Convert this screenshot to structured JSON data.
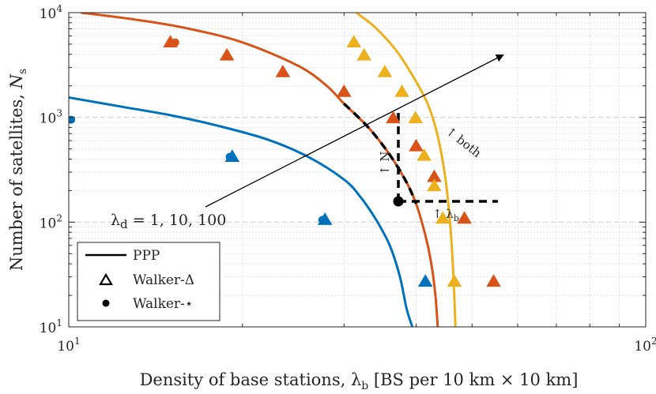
{
  "chart_data": {
    "type": "scatter",
    "title": "",
    "xscale": "log",
    "yscale": "log",
    "xlim": [
      10,
      100
    ],
    "ylim": [
      10,
      10000
    ],
    "xlabel_prefix": "Density of base stations, ",
    "xlabel_symbol": "λ",
    "xlabel_sub": "b",
    "xlabel_suffix": " [BS per 10 km × 10 km]",
    "ylabel_prefix": "Number of satellites, ",
    "ylabel_symbol": "N",
    "ylabel_sub": "s",
    "x_ticks": [
      {
        "value": 10,
        "base": "10",
        "exp": "1"
      },
      {
        "value": 100,
        "base": "10",
        "exp": "2"
      }
    ],
    "y_ticks": [
      {
        "value": 10,
        "base": "10",
        "exp": "1"
      },
      {
        "value": 100,
        "base": "10",
        "exp": "2"
      },
      {
        "value": 1000,
        "base": "10",
        "exp": "3"
      },
      {
        "value": 10000,
        "base": "10",
        "exp": "4"
      }
    ],
    "grid": true,
    "colors": {
      "blue": "#0072BD",
      "orange": "#D95319",
      "yellow": "#EDB120",
      "black": "#000000"
    },
    "series": [
      {
        "name": "PPP λd=1",
        "kind": "line",
        "color": "#0072BD",
        "points": [
          [
            10,
            1550
          ],
          [
            12.5,
            1250
          ],
          [
            15,
            1050
          ],
          [
            18,
            840
          ],
          [
            22,
            620
          ],
          [
            26,
            420
          ],
          [
            30,
            255
          ],
          [
            32,
            175
          ],
          [
            34,
            108
          ],
          [
            36,
            60
          ],
          [
            37.5,
            30
          ],
          [
            38.5,
            15
          ],
          [
            39.4,
            10
          ]
        ]
      },
      {
        "name": "PPP λd=10",
        "kind": "line",
        "color": "#D95319",
        "points": [
          [
            10.5,
            10000
          ],
          [
            13,
            8600
          ],
          [
            16,
            7100
          ],
          [
            20,
            5200
          ],
          [
            25,
            3100
          ],
          [
            28,
            2000
          ],
          [
            30,
            1350
          ],
          [
            33,
            810
          ],
          [
            36,
            440
          ],
          [
            38.5,
            240
          ],
          [
            40,
            150
          ],
          [
            41.5,
            75
          ],
          [
            42.5,
            40
          ],
          [
            43.2,
            20
          ],
          [
            43.6,
            10
          ]
        ]
      },
      {
        "name": "PPP λd=100",
        "kind": "line",
        "color": "#EDB120",
        "points": [
          [
            31.5,
            10000
          ],
          [
            34,
            7200
          ],
          [
            37,
            4300
          ],
          [
            40,
            2200
          ],
          [
            42,
            1300
          ],
          [
            43.5,
            700
          ],
          [
            44.8,
            300
          ],
          [
            45.6,
            130
          ],
          [
            46.1,
            60
          ],
          [
            46.5,
            25
          ],
          [
            46.8,
            10
          ]
        ]
      },
      {
        "name": "Walker-Δ λd=1",
        "kind": "triangle",
        "color": "#0072BD",
        "points": [
          [
            19.2,
            420
          ],
          [
            27.8,
            105
          ],
          [
            41.5,
            27
          ]
        ]
      },
      {
        "name": "Walker-★ λd=1",
        "kind": "dot",
        "color": "#0072BD",
        "points": [
          [
            10.1,
            950
          ],
          [
            19,
            420
          ],
          [
            27.5,
            105
          ]
        ]
      },
      {
        "name": "Walker-Δ λd=10",
        "kind": "triangle",
        "color": "#D95319",
        "points": [
          [
            15,
            5200
          ],
          [
            18.8,
            3900
          ],
          [
            23.5,
            2700
          ],
          [
            30,
            1750
          ],
          [
            36.5,
            980
          ],
          [
            40,
            530
          ],
          [
            43,
            270
          ],
          [
            48.5,
            108
          ],
          [
            54.5,
            27
          ]
        ]
      },
      {
        "name": "Walker-★ λd=10",
        "kind": "dot",
        "color": "#D95319",
        "points": [
          [
            15.3,
            5200
          ]
        ]
      },
      {
        "name": "Walker-Δ λd=100",
        "kind": "triangle",
        "color": "#EDB120",
        "points": [
          [
            31.2,
            5200
          ],
          [
            32.5,
            3900
          ],
          [
            35.3,
            2700
          ],
          [
            37.8,
            1750
          ],
          [
            39.9,
            980
          ],
          [
            41.3,
            430
          ],
          [
            43,
            220
          ],
          [
            44.5,
            108
          ],
          [
            46.6,
            27
          ]
        ]
      }
    ],
    "annotations": {
      "lambda_d_sym": "λ",
      "lambda_d_sub": "d",
      "lambda_d_values": " = 1, 10, 100",
      "arrow_both": "↑ both",
      "arrow_N": "↑ N",
      "arrow_lambda_sym": "↑ λ",
      "arrow_lambda_sub": "b"
    },
    "legend": {
      "position": "bottom-left",
      "entries": [
        {
          "label": "PPP",
          "marker": "line"
        },
        {
          "label": "Walker-Δ",
          "marker": "triangle"
        },
        {
          "label": "Walker-⋆",
          "marker": "dot"
        }
      ]
    }
  }
}
